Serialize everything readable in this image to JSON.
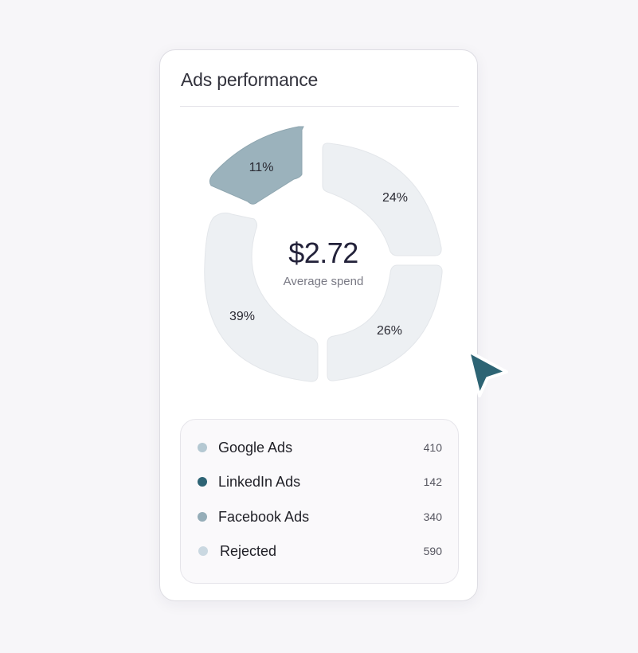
{
  "card": {
    "title": "Ads performance",
    "center_value": "$2.72",
    "center_label": "Average spend"
  },
  "donut": {
    "segments": [
      {
        "label": "11%",
        "color": "#9bb2bc",
        "highlighted": true
      },
      {
        "label": "24%",
        "color": "#edf0f3",
        "highlighted": false
      },
      {
        "label": "26%",
        "color": "#edf0f3",
        "highlighted": false
      },
      {
        "label": "39%",
        "color": "#edf0f3",
        "highlighted": false
      }
    ]
  },
  "legend": {
    "items": [
      {
        "label": "Google Ads",
        "count": "410",
        "color": "#b4c8d2"
      },
      {
        "label": "LinkedIn Ads",
        "count": "142",
        "color": "#2e6475"
      },
      {
        "label": "Facebook Ads",
        "count": "340",
        "color": "#95adb8"
      },
      {
        "label": "Rejected",
        "count": "590",
        "color": "#cad8e1"
      }
    ]
  },
  "colors": {
    "cursor": "#2d6474"
  },
  "icons": {
    "cursor": "cursor-arrow-icon"
  }
}
